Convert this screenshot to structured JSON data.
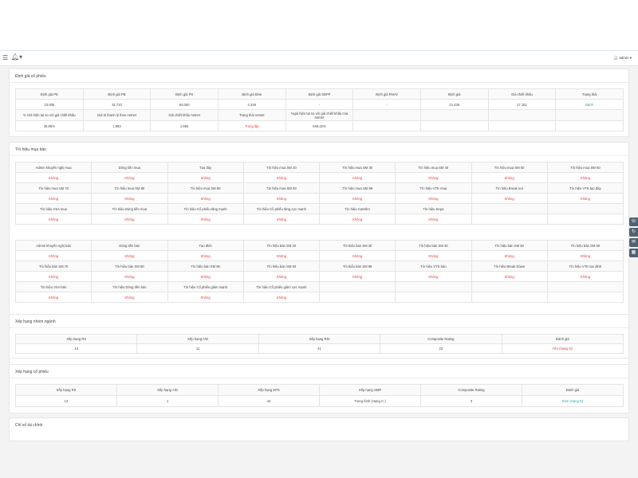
{
  "topbar": {
    "menu_icon": "menu-icon",
    "bell_icon": "bell-icon",
    "user": "admin"
  },
  "dinh_gia": {
    "title": "Định giá cổ phiếu",
    "row1_headers": [
      "Định giá PE",
      "Định giá PB",
      "Định giá PS",
      "Định giá Bine",
      "Định giá SDFP",
      "Định giá RNAV",
      "Định giá",
      "Giá chiết khấu",
      "Trạng thái"
    ],
    "row1_values": [
      "33.005",
      "31.710",
      "54.000",
      "4.345",
      "-",
      "-",
      "21.439",
      "17.151",
      "Bánh"
    ],
    "row2_headers": [
      "% Giá hiện tại so với giá chiết khấu",
      "Giá trị thanh lý theo netnet",
      "Giá chiết khấu netnet",
      "Trạng thái netnet",
      "%giá hiện tại so với giá chiết khấu của netnet",
      "",
      "",
      "",
      ""
    ],
    "row2_values": [
      "30.85%",
      "1.983",
      "1.692",
      "Trung lập",
      "849.22%",
      "",
      "",
      "",
      ""
    ]
  },
  "tin_hieu": {
    "title": "Tín hiệu mua bán",
    "value": "Không",
    "buy_rows": [
      [
        "Admin khuyến nghị mua",
        "Dòng tiền mua",
        "Tạo đáy",
        "Tín hiệu mua SM 20",
        "Tín hiệu mua SM 30",
        "Tín hiệu mua SM 40",
        "Tín hiệu mua SM 50",
        "Tín hiệu mua SM 60"
      ],
      [
        "Tín hiệu mua SM 70",
        "Tín hiệu mua SM 80",
        "Tín hiệu mua SM 90",
        "Tín hiệu mua SM 93",
        "Tín hiệu mua SM 99",
        "Tín hiệu VTK mua",
        "Tín hiệu Break out",
        "Tín hiệu VTK tạo đáy"
      ],
      [
        "Tín hiệu VSA mua",
        "Tín hiệu Dòng tiền mua",
        "Tín hiệu Cổ phiếu tăng mạnh",
        "Tín hiệu Cổ phiếu tăng cực mạnh",
        "Tín hiệu Canslim",
        "Tín hiệu Sepa",
        "",
        ""
      ]
    ],
    "sell_rows": [
      [
        "Admin khuyến nghị bán",
        "Dòng tiền bán",
        "Tạo đỉnh",
        "Tín hiệu bán SM 20",
        "Tín hiệu bán SM 30",
        "Tín hiệu bán SM 40",
        "Tín hiệu bán SM 50",
        "Tín hiệu bán SM 60"
      ],
      [
        "Tín hiệu bán SM 70",
        "Tín hiệu bán SM 80",
        "Tín hiệu bán SM 90",
        "Tín hiệu bán SM 93",
        "Tín hiệu bán SM 99",
        "Tín hiệu VTK bán",
        "Tín hiệu Break Down",
        "Tín hiệu VTK tạo đỉnh"
      ],
      [
        "Tín hiệu VSA bán",
        "Tín hiệu Dòng tiền bán",
        "Tín hiệu Cổ phiếu giảm mạnh",
        "Tín hiệu Cổ phiếu giảm cực mạnh",
        "",
        "",
        "",
        ""
      ]
    ]
  },
  "nhom_nganh": {
    "title": "Xếp hạng nhóm ngành",
    "headers": [
      "Xếp hạng RS",
      "Xếp hạng A/D",
      "Xếp hạng RSI",
      "Composite Rating",
      "Đánh giá"
    ],
    "values": [
      "14",
      "11",
      "41",
      "23",
      "Yếu (Hạng D)"
    ]
  },
  "co_phieu": {
    "title": "Xếp hạng cổ phiếu",
    "headers": [
      "Xếp hạng RS",
      "Xếp hạng A/D",
      "Xếp hạng EPS",
      "Xếp hạng SMR",
      "Composite Rating",
      "Đánh giá"
    ],
    "values": [
      "12",
      "1",
      "44",
      "Trung bình (Hạng C-)",
      "3",
      "Kém (Hạng E)"
    ]
  },
  "tai_chinh": {
    "title": "Chỉ số tài chính"
  },
  "side_buttons": [
    "phone-icon",
    "refresh-icon",
    "chat-icon",
    "calendar-icon"
  ]
}
